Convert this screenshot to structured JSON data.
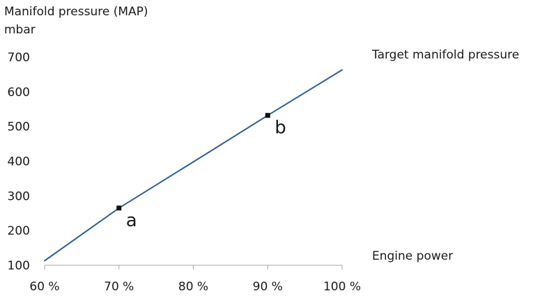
{
  "chart_data": {
    "type": "line",
    "ylabel_line1": "Manifold pressure (MAP)",
    "ylabel_line2": "mbar",
    "xlabel": "Engine power",
    "series": [
      {
        "name": "Target manifold pressure",
        "color": "#2e5f98",
        "x": [
          60,
          70,
          80,
          90,
          100
        ],
        "y": [
          113,
          265,
          398,
          532,
          663
        ]
      }
    ],
    "points": [
      {
        "label": "a",
        "x": 70,
        "y": 265
      },
      {
        "label": "b",
        "x": 90,
        "y": 532
      }
    ],
    "xlim": [
      60,
      100
    ],
    "ylim": [
      100,
      700
    ],
    "x_ticks": [
      60,
      70,
      80,
      90,
      100
    ],
    "x_tick_labels": [
      "60 %",
      "70 %",
      "80 %",
      "90 %",
      "100 %"
    ],
    "y_ticks": [
      100,
      200,
      300,
      400,
      500,
      600,
      700
    ],
    "y_tick_labels": [
      "100",
      "200",
      "300",
      "400",
      "500",
      "600",
      "700"
    ],
    "grid": false,
    "legend_position": "top-right"
  }
}
